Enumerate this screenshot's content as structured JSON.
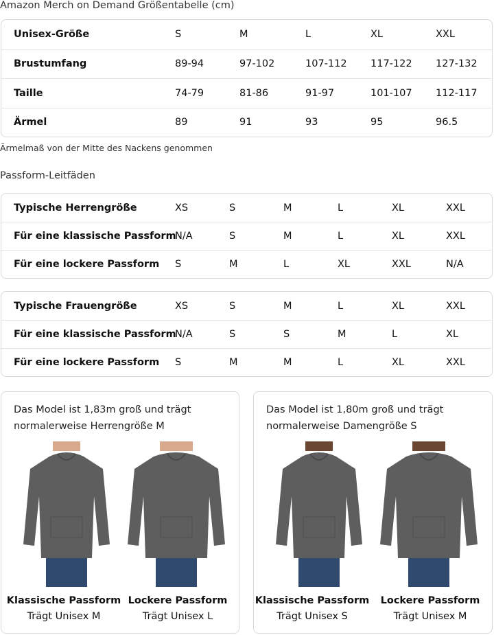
{
  "size_chart": {
    "title": "Amazon Merch on Demand Größentabelle (cm)",
    "rows": [
      {
        "label": "Unisex-Größe",
        "values": [
          "S",
          "M",
          "L",
          "XL",
          "XXL"
        ]
      },
      {
        "label": "Brustumfang",
        "values": [
          "89-94",
          "97-102",
          "107-112",
          "117-122",
          "127-132"
        ]
      },
      {
        "label": "Taille",
        "values": [
          "74-79",
          "81-86",
          "91-97",
          "101-107",
          "112-117"
        ]
      },
      {
        "label": "Ärmel",
        "values": [
          "89",
          "91",
          "93",
          "95",
          "96.5"
        ]
      }
    ],
    "note": "Ärmelmaß von der Mitte des Nackens genommen"
  },
  "fit_guides": {
    "title": "Passform-Leitfäden",
    "men": [
      {
        "label": "Typische Herrengröße",
        "values": [
          "XS",
          "S",
          "M",
          "L",
          "XL",
          "XXL"
        ]
      },
      {
        "label": "Für eine klassische Passform",
        "values": [
          "N/A",
          "S",
          "M",
          "L",
          "XL",
          "XXL"
        ]
      },
      {
        "label": "Für eine lockere Passform",
        "values": [
          "S",
          "M",
          "L",
          "XL",
          "XXL",
          "N/A"
        ]
      }
    ],
    "women": [
      {
        "label": "Typische Frauengröße",
        "values": [
          "XS",
          "S",
          "M",
          "L",
          "XL",
          "XXL"
        ]
      },
      {
        "label": "Für eine klassische Passform",
        "values": [
          "N/A",
          "S",
          "S",
          "M",
          "L",
          "XL"
        ]
      },
      {
        "label": "Für eine lockere Passform",
        "values": [
          "S",
          "M",
          "M",
          "L",
          "XL",
          "XXL"
        ]
      }
    ]
  },
  "models": [
    {
      "caption_line1": "Das Model ist 1,83m groß und trägt",
      "caption_line2": "normalerweise Herrengröße M",
      "fits": [
        {
          "name": "Klassische Passform",
          "wears": "Trägt Unisex M"
        },
        {
          "name": "Lockere Passform",
          "wears": "Trägt Unisex L"
        }
      ]
    },
    {
      "caption_line1": "Das Model ist 1,80m groß und trägt",
      "caption_line2": "normalerweise Damengröße S",
      "fits": [
        {
          "name": "Klassische Passform",
          "wears": "Trägt Unisex S"
        },
        {
          "name": "Lockere Passform",
          "wears": "Trägt Unisex M"
        }
      ]
    }
  ],
  "colors": {
    "hoodie": "#5e5e5e",
    "jeans": "#2f4a6e",
    "border": "#d5d9d9"
  }
}
